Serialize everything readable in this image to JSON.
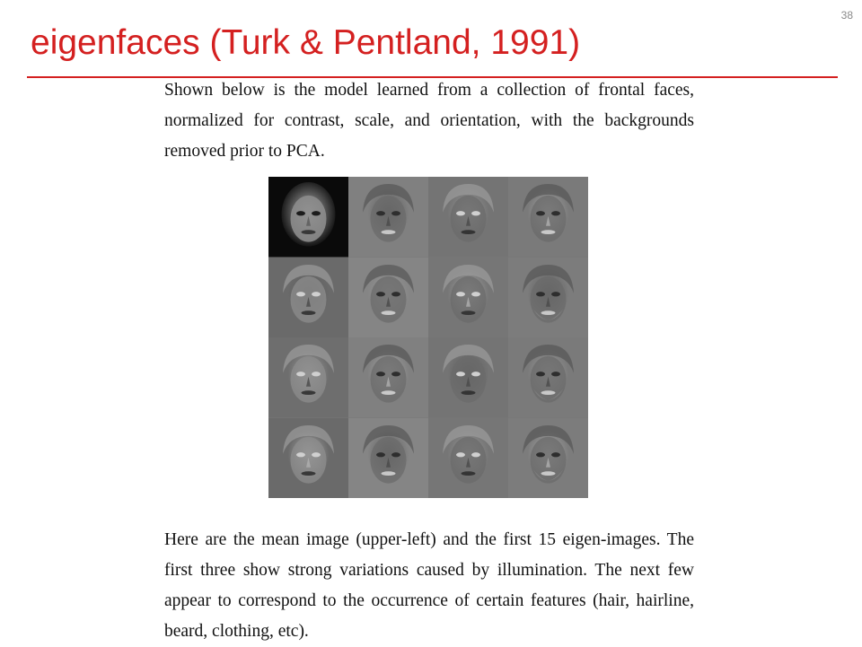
{
  "slide": {
    "number": "38",
    "title": "eigenfaces (Turk & Pentland, 1991)",
    "accent_color": "#d42020"
  },
  "text": {
    "intro": "Shown below is the model learned from a collection of frontal faces, normalized for contrast, scale, and orientation, with the backgrounds removed prior to PCA.",
    "caption": "Here are the mean image (upper-left) and the first 15 eigen-images. The first three show strong variations caused by illumination. The next few appear to correspond to the occurrence of certain features (hair, hairline, beard, clothing, etc)."
  },
  "figure": {
    "rows": 4,
    "cols": 4,
    "tiles": [
      {
        "kind": "mean-face"
      },
      {
        "kind": "eigenface"
      },
      {
        "kind": "eigenface"
      },
      {
        "kind": "eigenface"
      },
      {
        "kind": "eigenface"
      },
      {
        "kind": "eigenface"
      },
      {
        "kind": "eigenface"
      },
      {
        "kind": "eigenface"
      },
      {
        "kind": "eigenface"
      },
      {
        "kind": "eigenface"
      },
      {
        "kind": "eigenface"
      },
      {
        "kind": "eigenface"
      },
      {
        "kind": "eigenface"
      },
      {
        "kind": "eigenface"
      },
      {
        "kind": "eigenface"
      },
      {
        "kind": "eigenface"
      }
    ]
  }
}
